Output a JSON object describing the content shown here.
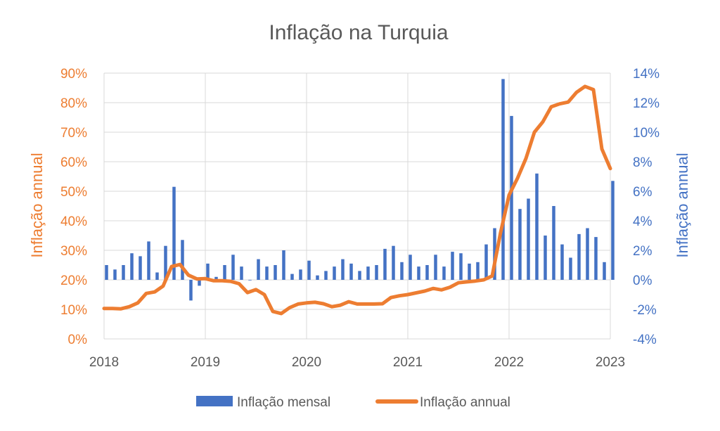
{
  "chart_data": {
    "type": "bar+line",
    "title": "Inflação na Turquia",
    "left_axis": {
      "label": "Inflação annual",
      "range": [
        0,
        90
      ],
      "ticks": [
        "0%",
        "10%",
        "20%",
        "30%",
        "40%",
        "50%",
        "60%",
        "70%",
        "80%",
        "90%"
      ],
      "color": "#ED7D31"
    },
    "right_axis": {
      "label": "Inflação annual",
      "range": [
        -4,
        14
      ],
      "ticks": [
        "-4%",
        "-2%",
        "0%",
        "2%",
        "4%",
        "6%",
        "8%",
        "10%",
        "12%",
        "14%"
      ],
      "color": "#4472C4"
    },
    "x_axis": {
      "range": [
        2018,
        2023
      ],
      "ticks": [
        "2018",
        "2019",
        "2020",
        "2021",
        "2022",
        "2023"
      ]
    },
    "grid": true,
    "legend_position": "bottom",
    "series": [
      {
        "name": "Inflação mensal",
        "kind": "bar",
        "axis": "right",
        "color": "#4472C4",
        "x": [
          2018.0,
          2018.0833,
          2018.1667,
          2018.25,
          2018.3333,
          2018.4167,
          2018.5,
          2018.5833,
          2018.6667,
          2018.75,
          2018.8333,
          2018.9167,
          2019.0,
          2019.0833,
          2019.1667,
          2019.25,
          2019.3333,
          2019.4167,
          2019.5,
          2019.5833,
          2019.6667,
          2019.75,
          2019.8333,
          2019.9167,
          2020.0,
          2020.0833,
          2020.1667,
          2020.25,
          2020.3333,
          2020.4167,
          2020.5,
          2020.5833,
          2020.6667,
          2020.75,
          2020.8333,
          2020.9167,
          2021.0,
          2021.0833,
          2021.1667,
          2021.25,
          2021.3333,
          2021.4167,
          2021.5,
          2021.5833,
          2021.6667,
          2021.75,
          2021.8333,
          2021.9167,
          2022.0,
          2022.0833,
          2022.1667,
          2022.25,
          2022.3333,
          2022.4167,
          2022.5,
          2022.5833,
          2022.6667,
          2022.75,
          2022.8333,
          2022.9167,
          2023.0
        ],
        "values": [
          1.0,
          0.7,
          1.0,
          1.8,
          1.6,
          2.6,
          0.5,
          2.3,
          6.3,
          2.7,
          -1.4,
          -0.4,
          1.1,
          0.2,
          1.0,
          1.7,
          0.9,
          0.0,
          1.4,
          0.9,
          1.0,
          2.0,
          0.4,
          0.7,
          1.3,
          0.3,
          0.6,
          0.9,
          1.4,
          1.1,
          0.6,
          0.9,
          1.0,
          2.1,
          2.3,
          1.2,
          1.7,
          0.9,
          1.0,
          1.7,
          0.9,
          1.9,
          1.8,
          1.1,
          1.2,
          2.4,
          3.5,
          13.6,
          11.1,
          4.8,
          5.5,
          7.2,
          3.0,
          5.0,
          2.4,
          1.5,
          3.1,
          3.5,
          2.9,
          1.2,
          6.7
        ]
      },
      {
        "name": "Inflação annual",
        "kind": "line",
        "axis": "left",
        "color": "#ED7D31",
        "x": [
          2018.0,
          2018.0833,
          2018.1667,
          2018.25,
          2018.3333,
          2018.4167,
          2018.5,
          2018.5833,
          2018.6667,
          2018.75,
          2018.8333,
          2018.9167,
          2019.0,
          2019.0833,
          2019.1667,
          2019.25,
          2019.3333,
          2019.4167,
          2019.5,
          2019.5833,
          2019.6667,
          2019.75,
          2019.8333,
          2019.9167,
          2020.0,
          2020.0833,
          2020.1667,
          2020.25,
          2020.3333,
          2020.4167,
          2020.5,
          2020.5833,
          2020.6667,
          2020.75,
          2020.8333,
          2020.9167,
          2021.0,
          2021.0833,
          2021.1667,
          2021.25,
          2021.3333,
          2021.4167,
          2021.5,
          2021.5833,
          2021.6667,
          2021.75,
          2021.8333,
          2021.9167,
          2022.0,
          2022.0833,
          2022.1667,
          2022.25,
          2022.3333,
          2022.4167,
          2022.5,
          2022.5833,
          2022.6667,
          2022.75,
          2022.8333,
          2022.9167,
          2023.0
        ],
        "values": [
          10.3,
          10.3,
          10.2,
          10.9,
          12.2,
          15.4,
          15.9,
          17.9,
          24.5,
          25.2,
          21.6,
          20.3,
          20.4,
          19.7,
          19.7,
          19.5,
          18.7,
          15.7,
          16.7,
          15.0,
          9.3,
          8.6,
          10.6,
          11.8,
          12.2,
          12.4,
          11.9,
          10.9,
          11.4,
          12.6,
          11.8,
          11.8,
          11.8,
          11.9,
          14.0,
          14.6,
          15.0,
          15.6,
          16.2,
          17.1,
          16.6,
          17.5,
          19.0,
          19.3,
          19.6,
          20.0,
          21.3,
          36.1,
          48.7,
          54.4,
          61.1,
          69.97,
          73.5,
          78.6,
          79.6,
          80.2,
          83.5,
          85.5,
          84.4,
          64.3,
          57.7
        ]
      }
    ]
  }
}
